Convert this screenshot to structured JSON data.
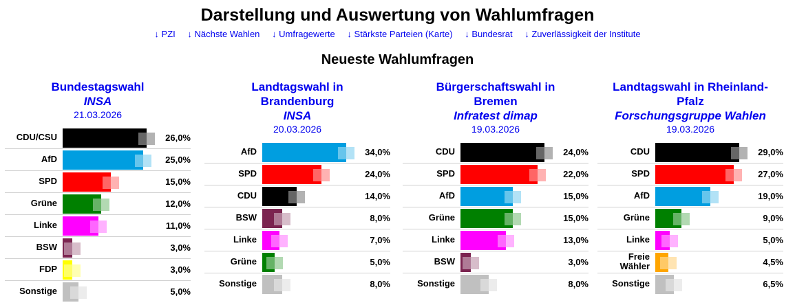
{
  "header": {
    "title": "Darstellung und Auswertung von Wahlumfragen",
    "nav": [
      {
        "label": "↓ PZI"
      },
      {
        "label": "↓ Nächste Wahlen"
      },
      {
        "label": "↓ Umfragewerte"
      },
      {
        "label": "↓ Stärkste Parteien (Karte)"
      },
      {
        "label": "↓ Bundesrat"
      },
      {
        "label": "↓ Zuverlässigkeit der Institute"
      }
    ],
    "subtitle": "Neueste Wahlumfragen"
  },
  "colors": {
    "CDU/CSU": "#000000",
    "CDU": "#000000",
    "AfD": "#009ee0",
    "SPD": "#ff0000",
    "Grüne": "#008000",
    "Linke": "#ff00ff",
    "BSW": "#7b2450",
    "FDP": "#ffff00",
    "Freie Wähler": "#ffa500",
    "Sonstige": "#c0c0c0"
  },
  "chart_data": [
    {
      "type": "bar",
      "title_lines": [
        "Bundestagswahl"
      ],
      "institute": "INSA",
      "date": "21.03.2026",
      "categories": [
        "CDU/CSU",
        "AfD",
        "SPD",
        "Grüne",
        "Linke",
        "BSW",
        "FDP",
        "Sonstige"
      ],
      "values": [
        26.0,
        25.0,
        15.0,
        12.0,
        11.0,
        3.0,
        3.0,
        5.0
      ],
      "labels": [
        "26,0%",
        "25,0%",
        "15,0%",
        "12,0%",
        "11,0%",
        "3,0%",
        "3,0%",
        "5,0%"
      ]
    },
    {
      "type": "bar",
      "title_lines": [
        "Landtagswahl in",
        "Brandenburg"
      ],
      "institute": "INSA",
      "date": "20.03.2026",
      "categories": [
        "AfD",
        "SPD",
        "CDU",
        "BSW",
        "Linke",
        "Grüne",
        "Sonstige"
      ],
      "values": [
        34.0,
        24.0,
        14.0,
        8.0,
        7.0,
        5.0,
        8.0
      ],
      "labels": [
        "34,0%",
        "24,0%",
        "14,0%",
        "8,0%",
        "7,0%",
        "5,0%",
        "8,0%"
      ]
    },
    {
      "type": "bar",
      "title_lines": [
        "Bürgerschaftswahl in",
        "Bremen"
      ],
      "institute": "Infratest dimap",
      "date": "19.03.2026",
      "categories": [
        "CDU",
        "SPD",
        "AfD",
        "Grüne",
        "Linke",
        "BSW",
        "Sonstige"
      ],
      "values": [
        24.0,
        22.0,
        15.0,
        15.0,
        13.0,
        3.0,
        8.0
      ],
      "labels": [
        "24,0%",
        "22,0%",
        "15,0%",
        "15,0%",
        "13,0%",
        "3,0%",
        "8,0%"
      ]
    },
    {
      "type": "bar",
      "title_lines": [
        "Landtagswahl in Rheinland-",
        "Pfalz"
      ],
      "institute": "Forschungsgruppe Wahlen",
      "date": "19.03.2026",
      "categories": [
        "CDU",
        "SPD",
        "AfD",
        "Grüne",
        "Linke",
        "Freie Wähler",
        "Sonstige"
      ],
      "values": [
        29.0,
        27.0,
        19.0,
        9.0,
        5.0,
        4.5,
        6.5
      ],
      "labels": [
        "29,0%",
        "27,0%",
        "19,0%",
        "9,0%",
        "5,0%",
        "4,5%",
        "6,5%"
      ]
    }
  ]
}
